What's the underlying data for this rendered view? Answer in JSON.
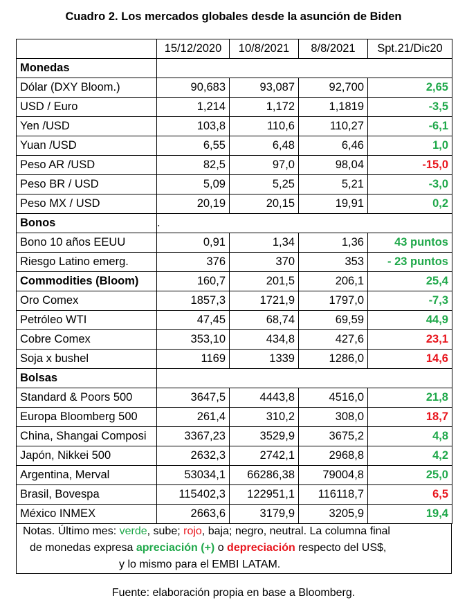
{
  "title": "Cuadro 2. Los mercados globales desde la asunción de Biden",
  "headers": [
    "",
    "15/12/2020",
    "10/8/2021",
    "8/8/2021",
    "Spt.21/Dic20"
  ],
  "sections": [
    {
      "name": "Monedas",
      "rows": [
        {
          "label": "Dólar (DXY Bloom.)",
          "v1": "90,683",
          "v2": "93,087",
          "v3": "92,700",
          "chg": "2,65",
          "color": "green"
        },
        {
          "label": "USD / Euro",
          "v1": "1,214",
          "v2": "1,172",
          "v3": "1,1819",
          "chg": "-3,5",
          "color": "green"
        },
        {
          "label": "Yen /USD",
          "v1": "103,8",
          "v2": "110,6",
          "v3": "110,27",
          "chg": "-6,1",
          "color": "green"
        },
        {
          "label": "Yuan /USD",
          "v1": "6,55",
          "v2": "6,48",
          "v3": "6,46",
          "chg": "1,0",
          "color": "green"
        },
        {
          "label": "Peso AR /USD",
          "v1": "82,5",
          "v2": "97,0",
          "v3": "98,04",
          "chg": "-15,0",
          "color": "red"
        },
        {
          "label": "Peso BR / USD",
          "v1": "5,09",
          "v2": "5,25",
          "v3": "5,21",
          "chg": "-3,0",
          "color": "green"
        },
        {
          "label": "Peso MX / USD",
          "v1": "20,19",
          "v2": "20,15",
          "v3": "19,91",
          "chg": "0,2",
          "color": "green"
        }
      ]
    },
    {
      "name": "Bonos",
      "extra": ".",
      "rows": [
        {
          "label": "Bono 10 años EEUU",
          "v1": "0,91",
          "v2": "1,34",
          "v3": "1,36",
          "chg": "43 puntos",
          "color": "green"
        },
        {
          "label": "Riesgo Latino emerg.",
          "v1": "376",
          "v2": "370",
          "v3": "353",
          "chg": "- 23 puntos",
          "color": "green"
        }
      ]
    }
  ],
  "commodities": {
    "name": "Commodities (Bloom)",
    "v1": "160,7",
    "v2": "201,5",
    "v3": "206,1",
    "chg": "25,4",
    "color": "green",
    "rows": [
      {
        "label": "Oro Comex",
        "v1": "1857,3",
        "v2": "1721,9",
        "v3": "1797,0",
        "chg": "-7,3",
        "color": "green"
      },
      {
        "label": "Petróleo WTI",
        "v1": "47,45",
        "v2": "68,74",
        "v3": "69,59",
        "chg": "44,9",
        "color": "green"
      },
      {
        "label": "Cobre Comex",
        "v1": "353,10",
        "v2": "434,8",
        "v3": "427,6",
        "chg": "23,1",
        "color": "red"
      },
      {
        "label": "Soja x bushel",
        "v1": "1169",
        "v2": "1339",
        "v3": "1286,0",
        "chg": "14,6",
        "color": "red"
      }
    ]
  },
  "bolsas": {
    "name": "Bolsas",
    "rows": [
      {
        "label": "Standard & Poors 500",
        "v1": "3647,5",
        "v2": "4443,8",
        "v3": "4516,0",
        "chg": "21,8",
        "color": "green"
      },
      {
        "label": "Europa Bloomberg 500",
        "v1": "261,4",
        "v2": "310,2",
        "v3": "308,0",
        "chg": "18,7",
        "color": "red"
      },
      {
        "label": "China, Shangai Composi",
        "v1": "3367,23",
        "v2": "3529,9",
        "v3": "3675,2",
        "chg": "4,8",
        "color": "green"
      },
      {
        "label": "Japón, Nikkei 500",
        "v1": "2632,3",
        "v2": "2742,1",
        "v3": "2968,8",
        "chg": "4,2",
        "color": "green"
      },
      {
        "label": "Argentina, Merval",
        "v1": "53034,1",
        "v2": "66286,38",
        "v3": "79004,8",
        "chg": "25,0",
        "color": "green"
      },
      {
        "label": "Brasil, Bovespa",
        "v1": "115402,3",
        "v2": "122951,1",
        "v3": "116118,7",
        "chg": "6,5",
        "color": "red"
      },
      {
        "label": "México INMEX",
        "v1": "2663,6",
        "v2": "3179,9",
        "v3": "3205,9",
        "chg": "19,4",
        "color": "green"
      }
    ]
  },
  "notes": {
    "l1_a": "Notas. Último mes: ",
    "l1_verde": "verde",
    "l1_b": ", sube; ",
    "l1_rojo": "rojo",
    "l1_c": ", baja; negro, neutral. La columna final",
    "l2_a": "de monedas expresa ",
    "l2_apre": "apreciación (+)",
    "l2_b": " o ",
    "l2_depre": "depreciación",
    "l2_c": " respecto del US$,",
    "l3": "y lo mismo  para el EMBI LATAM."
  },
  "source": "Fuente: elaboración propia en base a Bloomberg.",
  "colors": {
    "green": "#1fa84a",
    "red": "#e8141c"
  }
}
